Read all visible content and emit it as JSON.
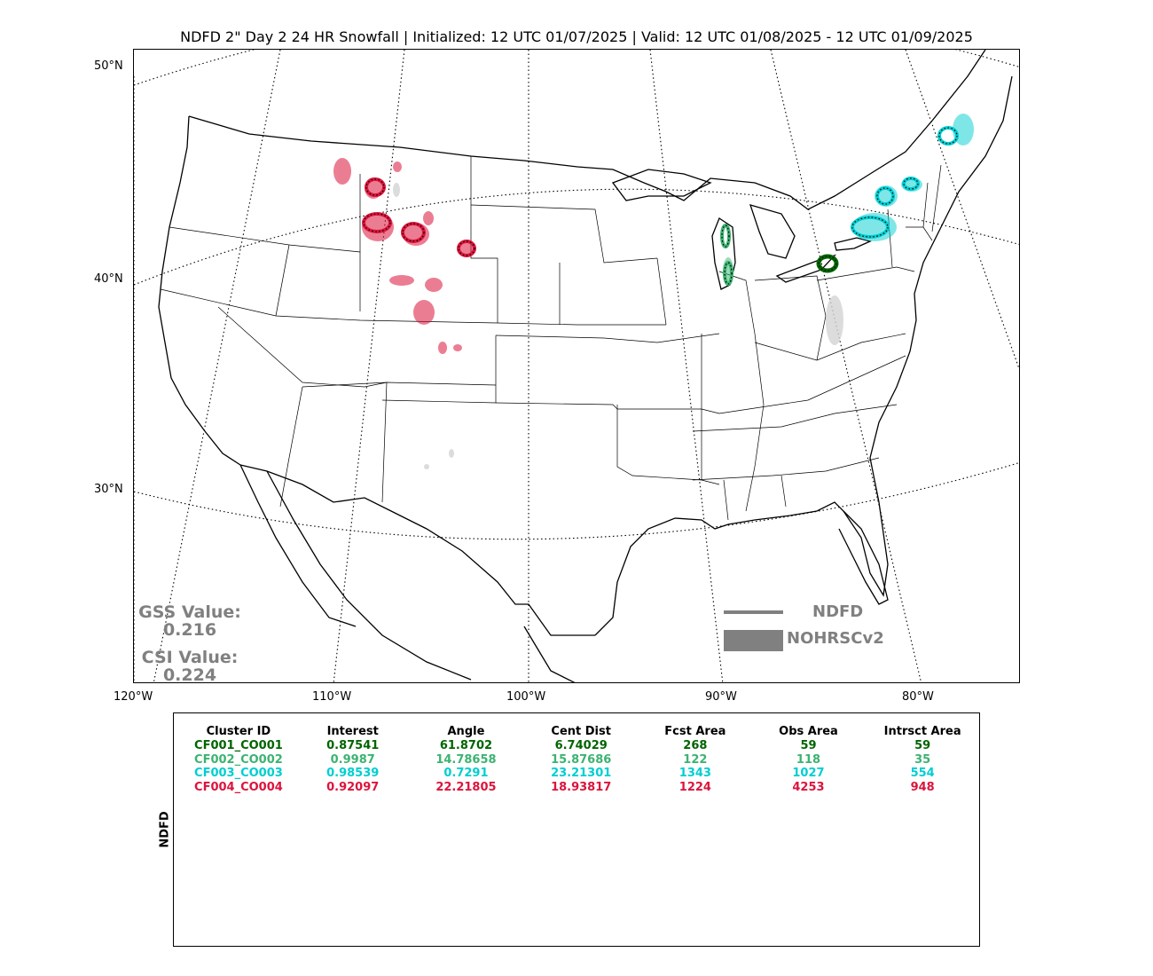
{
  "title": "NDFD 2\" Day 2 24 HR Snowfall | Initialized: 12 UTC 01/07/2025 | Valid: 12 UTC 01/08/2025 - 12 UTC 01/09/2025",
  "axes": {
    "lat_labels": [
      "50°N",
      "40°N",
      "30°N"
    ],
    "lon_labels": [
      "120°W",
      "110°W",
      "100°W",
      "90°W",
      "80°W"
    ]
  },
  "scores": {
    "gss_label": "GSS Value:",
    "gss_value": "0.216",
    "csi_label": "CSI Value:",
    "csi_value": "0.224"
  },
  "legend": {
    "forecast": "NDFD",
    "observed": "NOHRSCv2",
    "line_color": "#808080"
  },
  "colors": {
    "CF001": "#006400",
    "CF002": "#3cb371",
    "CF003": "#00ced1",
    "CF004": "#dc143c",
    "unmatched": "#d3d3d3"
  },
  "table": {
    "side_label": "NDFD",
    "headers": [
      "Cluster ID",
      "Interest",
      "Angle",
      "Cent Dist",
      "Fcst Area",
      "Obs Area",
      "Intrsct Area"
    ],
    "rows": [
      {
        "color": "#006400",
        "cells": [
          "CF001_CO001",
          "0.87541",
          "61.8702",
          "6.74029",
          "268",
          "59",
          "59"
        ]
      },
      {
        "color": "#3cb371",
        "cells": [
          "CF002_CO002",
          "0.9987",
          "14.78658",
          "15.87686",
          "122",
          "118",
          "35"
        ]
      },
      {
        "color": "#00ced1",
        "cells": [
          "CF003_CO003",
          "0.98539",
          "0.7291",
          "23.21301",
          "1343",
          "1027",
          "554"
        ]
      },
      {
        "color": "#dc143c",
        "cells": [
          "CF004_CO004",
          "0.92097",
          "22.21805",
          "18.93817",
          "1224",
          "4253",
          "948"
        ]
      }
    ]
  }
}
